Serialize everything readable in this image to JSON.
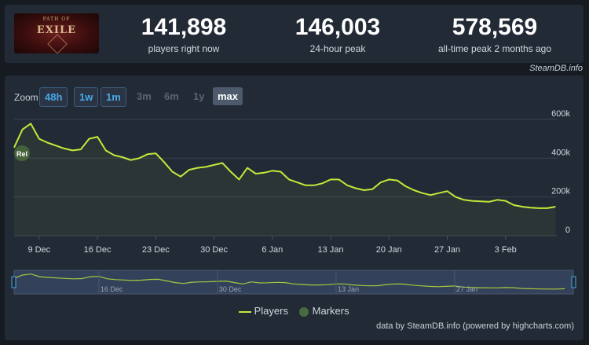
{
  "logo": {
    "title": "EXILE",
    "subtitle": "PATH OF"
  },
  "stats": {
    "current": {
      "value": "141,898",
      "label": "players right now"
    },
    "peak24": {
      "value": "146,003",
      "label": "24-hour peak"
    },
    "alltime": {
      "value": "578,569",
      "label": "all-time peak 2 months ago"
    }
  },
  "brand": "SteamDB.info",
  "zoom": {
    "label": "Zoom",
    "buttons": [
      "48h",
      "1w",
      "1m",
      "3m",
      "6m",
      "1y",
      "max"
    ],
    "selected": "max"
  },
  "credit": "data by SteamDB.info (powered by highcharts.com)",
  "chart_data": {
    "type": "line",
    "series": [
      {
        "name": "Players",
        "color": "#c4e83a",
        "points": [
          [
            "2024-12-06",
            455000
          ],
          [
            "2024-12-07",
            548000
          ],
          [
            "2024-12-08",
            578000
          ],
          [
            "2024-12-09",
            500000
          ],
          [
            "2024-12-10",
            480000
          ],
          [
            "2024-12-12",
            450000
          ],
          [
            "2024-12-13",
            440000
          ],
          [
            "2024-12-14",
            445000
          ],
          [
            "2024-12-15",
            500000
          ],
          [
            "2024-12-16",
            510000
          ],
          [
            "2024-12-17",
            440000
          ],
          [
            "2024-12-18",
            415000
          ],
          [
            "2024-12-19",
            405000
          ],
          [
            "2024-12-20",
            390000
          ],
          [
            "2024-12-21",
            400000
          ],
          [
            "2024-12-22",
            420000
          ],
          [
            "2024-12-23",
            425000
          ],
          [
            "2024-12-24",
            380000
          ],
          [
            "2024-12-25",
            330000
          ],
          [
            "2024-12-26",
            305000
          ],
          [
            "2024-12-27",
            340000
          ],
          [
            "2024-12-28",
            350000
          ],
          [
            "2024-12-29",
            355000
          ],
          [
            "2024-12-31",
            375000
          ],
          [
            "2025-01-01",
            330000
          ],
          [
            "2025-01-02",
            290000
          ],
          [
            "2025-01-03",
            350000
          ],
          [
            "2025-01-04",
            320000
          ],
          [
            "2025-01-05",
            325000
          ],
          [
            "2025-01-06",
            335000
          ],
          [
            "2025-01-07",
            330000
          ],
          [
            "2025-01-08",
            290000
          ],
          [
            "2025-01-09",
            275000
          ],
          [
            "2025-01-10",
            260000
          ],
          [
            "2025-01-11",
            260000
          ],
          [
            "2025-01-12",
            270000
          ],
          [
            "2025-01-13",
            290000
          ],
          [
            "2025-01-14",
            290000
          ],
          [
            "2025-01-15",
            260000
          ],
          [
            "2025-01-16",
            245000
          ],
          [
            "2025-01-17",
            235000
          ],
          [
            "2025-01-18",
            240000
          ],
          [
            "2025-01-19",
            275000
          ],
          [
            "2025-01-20",
            290000
          ],
          [
            "2025-01-21",
            285000
          ],
          [
            "2025-01-22",
            255000
          ],
          [
            "2025-01-23",
            235000
          ],
          [
            "2025-01-24",
            220000
          ],
          [
            "2025-01-25",
            210000
          ],
          [
            "2025-01-26",
            220000
          ],
          [
            "2025-01-27",
            230000
          ],
          [
            "2025-01-28",
            200000
          ],
          [
            "2025-01-29",
            185000
          ],
          [
            "2025-01-30",
            180000
          ],
          [
            "2025-02-01",
            175000
          ],
          [
            "2025-02-02",
            185000
          ],
          [
            "2025-02-03",
            180000
          ],
          [
            "2025-02-04",
            158000
          ],
          [
            "2025-02-05",
            150000
          ],
          [
            "2025-02-06",
            145000
          ],
          [
            "2025-02-07",
            142000
          ],
          [
            "2025-02-08",
            142000
          ],
          [
            "2025-02-09",
            150000
          ]
        ]
      }
    ],
    "markers": [
      {
        "date": "2024-12-06",
        "label": "Rel"
      }
    ],
    "x_ticks": [
      "9 Dec",
      "16 Dec",
      "23 Dec",
      "30 Dec",
      "6 Jan",
      "13 Jan",
      "20 Jan",
      "27 Jan",
      "3 Feb"
    ],
    "x_tick_dates": [
      "2024-12-09",
      "2024-12-16",
      "2024-12-23",
      "2024-12-30",
      "2025-01-06",
      "2025-01-13",
      "2025-01-20",
      "2025-01-27",
      "2025-02-03"
    ],
    "xlim": [
      "2024-12-06",
      "2025-02-10"
    ],
    "y_ticks": [
      0,
      200000,
      400000,
      600000
    ],
    "y_tick_labels": [
      "0",
      "200k",
      "400k",
      "600k"
    ],
    "ylim": [
      0,
      640000
    ],
    "grid": true,
    "navigator": {
      "labels": [
        "16 Dec",
        "30 Dec",
        "13 Jan",
        "27 Jan"
      ],
      "label_dates": [
        "2024-12-16",
        "2024-12-30",
        "2025-01-13",
        "2025-01-27"
      ]
    },
    "legend": {
      "position": "bottom-center",
      "items": [
        {
          "name": "Players",
          "color": "#c4e83a",
          "symbol": "line"
        },
        {
          "name": "Markers",
          "color": "#4a6a3c",
          "symbol": "circle"
        }
      ]
    }
  }
}
